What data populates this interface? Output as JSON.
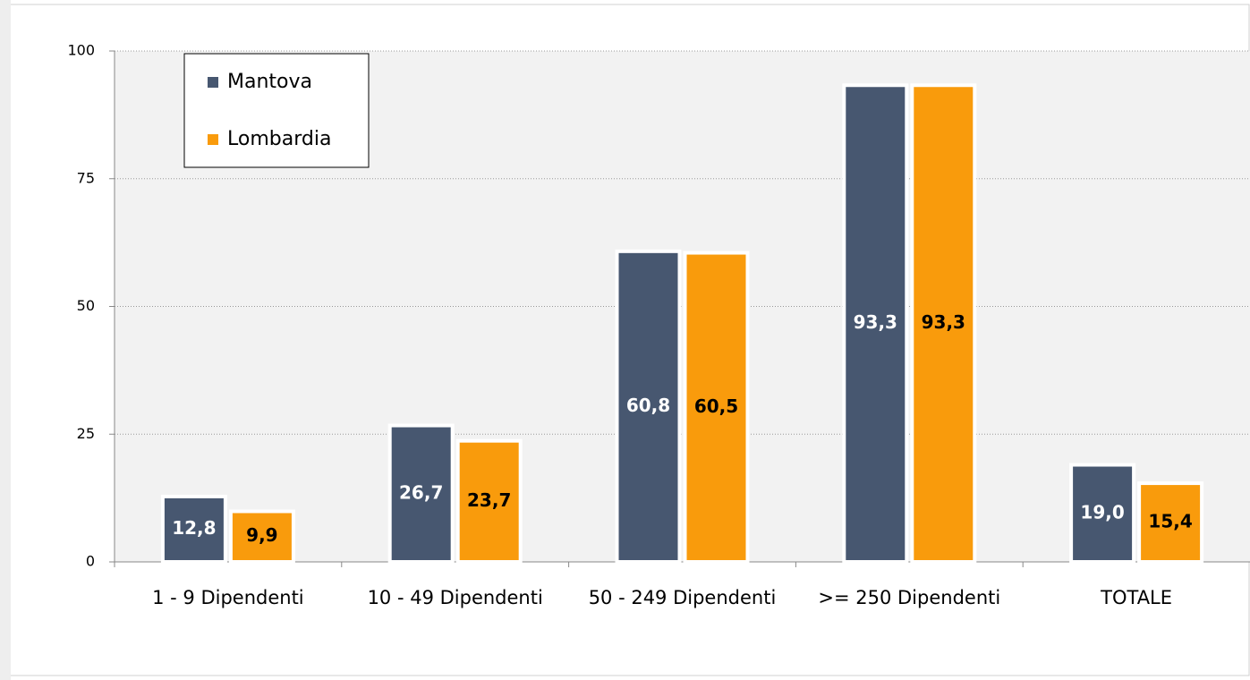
{
  "chart_data": {
    "type": "bar",
    "categories": [
      "1 - 9 Dipendenti",
      "10 - 49 Dipendenti",
      "50 - 249 Dipendenti",
      ">= 250 Dipendenti",
      "TOTALE"
    ],
    "series": [
      {
        "name": "Mantova",
        "color": "#475770",
        "values": [
          12.8,
          26.7,
          60.8,
          93.3,
          19.0
        ],
        "value_labels": [
          "12,8",
          "26,7",
          "60,8",
          "93,3",
          "19,0"
        ]
      },
      {
        "name": "Lombardia",
        "color": "#f99b0c",
        "values": [
          9.9,
          23.7,
          60.5,
          93.3,
          15.4
        ],
        "value_labels": [
          "9,9",
          "23,7",
          "60,5",
          "93,3",
          "15,4"
        ]
      }
    ],
    "ylim": [
      0,
      100
    ],
    "yticks": [
      0,
      25,
      50,
      75,
      100
    ],
    "grid": true,
    "legend": "top-left"
  }
}
